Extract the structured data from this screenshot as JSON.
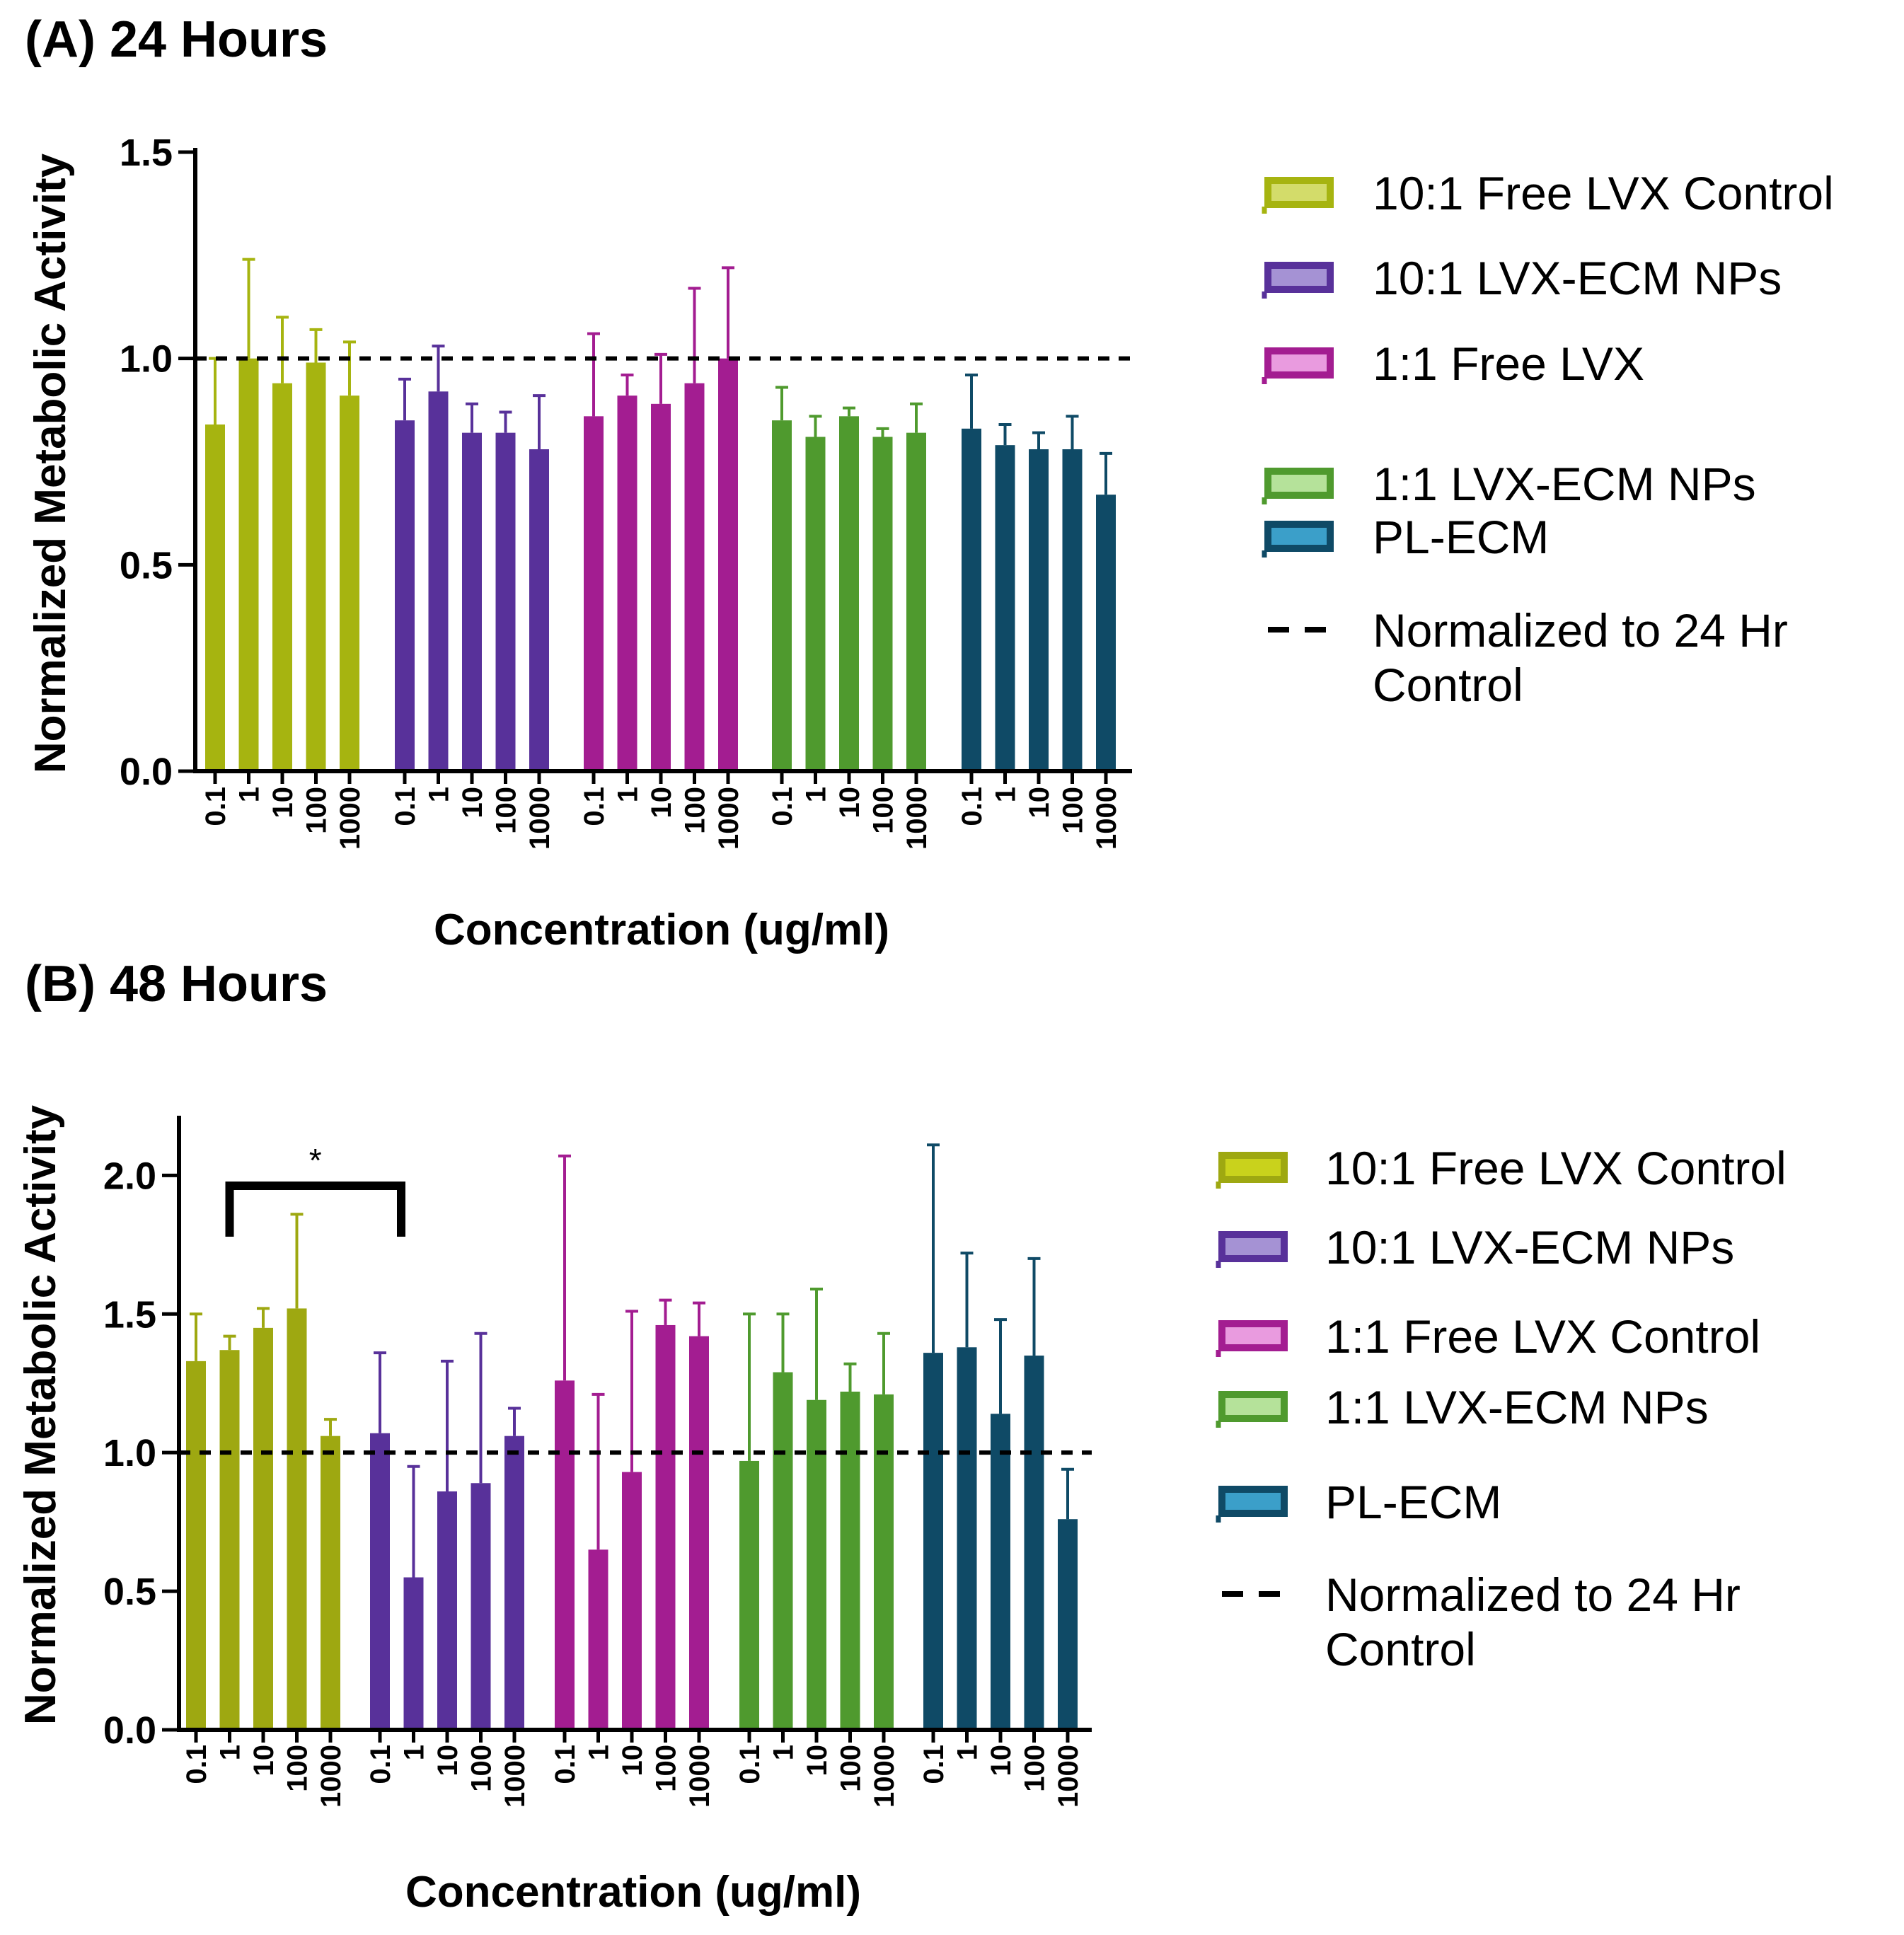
{
  "chart_data": [
    {
      "type": "bar",
      "panel_title": "(A) 24 Hours",
      "xlabel": "Concentration (ug/ml)",
      "ylabel": "Normalized Metabolic Activity",
      "ylim": [
        0,
        1.5
      ],
      "yticks": [
        "0.0",
        "0.5",
        "1.0",
        "1.5"
      ],
      "categories": [
        "0.1",
        "1",
        "10",
        "100",
        "1000"
      ],
      "reference_line": {
        "value": 1.0,
        "label": "Normalized to 24 Hr Control"
      },
      "series": [
        {
          "name": "10:1 Free LVX Control",
          "color": "#a6b410",
          "legend_light": "#d3dc6a",
          "values": [
            0.84,
            1.0,
            0.94,
            0.99,
            0.91
          ],
          "errors": [
            0.16,
            0.24,
            0.16,
            0.08,
            0.13
          ]
        },
        {
          "name": "10:1 LVX-ECM NPs",
          "color": "#58319a",
          "legend_light": "#a592d4",
          "values": [
            0.85,
            0.92,
            0.82,
            0.82,
            0.78
          ],
          "errors": [
            0.1,
            0.11,
            0.07,
            0.05,
            0.13
          ]
        },
        {
          "name": "1:1 Free LVX",
          "color": "#a31d91",
          "legend_light": "#e99bdf",
          "values": [
            0.86,
            0.91,
            0.89,
            0.94,
            1.0
          ],
          "errors": [
            0.2,
            0.05,
            0.12,
            0.23,
            0.22
          ]
        },
        {
          "name": "1:1 LVX-ECM NPs",
          "color": "#4f9a2e",
          "legend_light": "#b5e29a",
          "values": [
            0.85,
            0.81,
            0.86,
            0.81,
            0.82
          ],
          "errors": [
            0.08,
            0.05,
            0.02,
            0.02,
            0.07
          ]
        },
        {
          "name": "PL-ECM",
          "color": "#0f4a66",
          "legend_light": "#3b9fc9",
          "values": [
            0.83,
            0.79,
            0.78,
            0.78,
            0.67
          ],
          "errors": [
            0.13,
            0.05,
            0.04,
            0.08,
            0.1
          ]
        }
      ]
    },
    {
      "type": "bar",
      "panel_title": "(B) 48 Hours",
      "xlabel": "Concentration (ug/ml)",
      "ylabel": "Normalized Metabolic Activity",
      "ylim": [
        0,
        2.2
      ],
      "yticks": [
        "0.0",
        "0.5",
        "1.0",
        "1.5",
        "2.0"
      ],
      "categories": [
        "0.1",
        "1",
        "10",
        "100",
        "1000"
      ],
      "reference_line": {
        "value": 1.0,
        "label": "Normalized to 24 Hr Control"
      },
      "significance": {
        "label": "*",
        "from": [
          0,
          1
        ],
        "to": [
          1,
          0
        ]
      },
      "series": [
        {
          "name": "10:1 Free LVX Control",
          "color": "#9ea811",
          "legend_light": "#c9d21c",
          "values": [
            1.33,
            1.37,
            1.45,
            1.52,
            1.06
          ],
          "errors": [
            0.17,
            0.05,
            0.07,
            0.34,
            0.06
          ]
        },
        {
          "name": "10:1 LVX-ECM NPs",
          "color": "#58319a",
          "legend_light": "#a592d4",
          "values": [
            1.07,
            0.55,
            0.86,
            0.89,
            1.06
          ],
          "errors": [
            0.29,
            0.4,
            0.47,
            0.54,
            0.1
          ]
        },
        {
          "name": "1:1 Free LVX Control",
          "color": "#a31d91",
          "legend_light": "#e99bdf",
          "values": [
            1.26,
            0.65,
            0.93,
            1.46,
            1.42
          ],
          "errors": [
            0.81,
            0.56,
            0.58,
            0.09,
            0.12
          ]
        },
        {
          "name": "1:1 LVX-ECM NPs",
          "color": "#4f9a2e",
          "legend_light": "#b5e29a",
          "values": [
            0.97,
            1.29,
            1.19,
            1.22,
            1.21
          ],
          "errors": [
            0.53,
            0.21,
            0.4,
            0.1,
            0.22
          ]
        },
        {
          "name": "PL-ECM",
          "color": "#0f4a66",
          "legend_light": "#3b9fc9",
          "values": [
            1.36,
            1.38,
            1.14,
            1.35,
            0.76
          ],
          "errors": [
            0.75,
            0.34,
            0.34,
            0.35,
            0.18
          ]
        }
      ]
    }
  ]
}
